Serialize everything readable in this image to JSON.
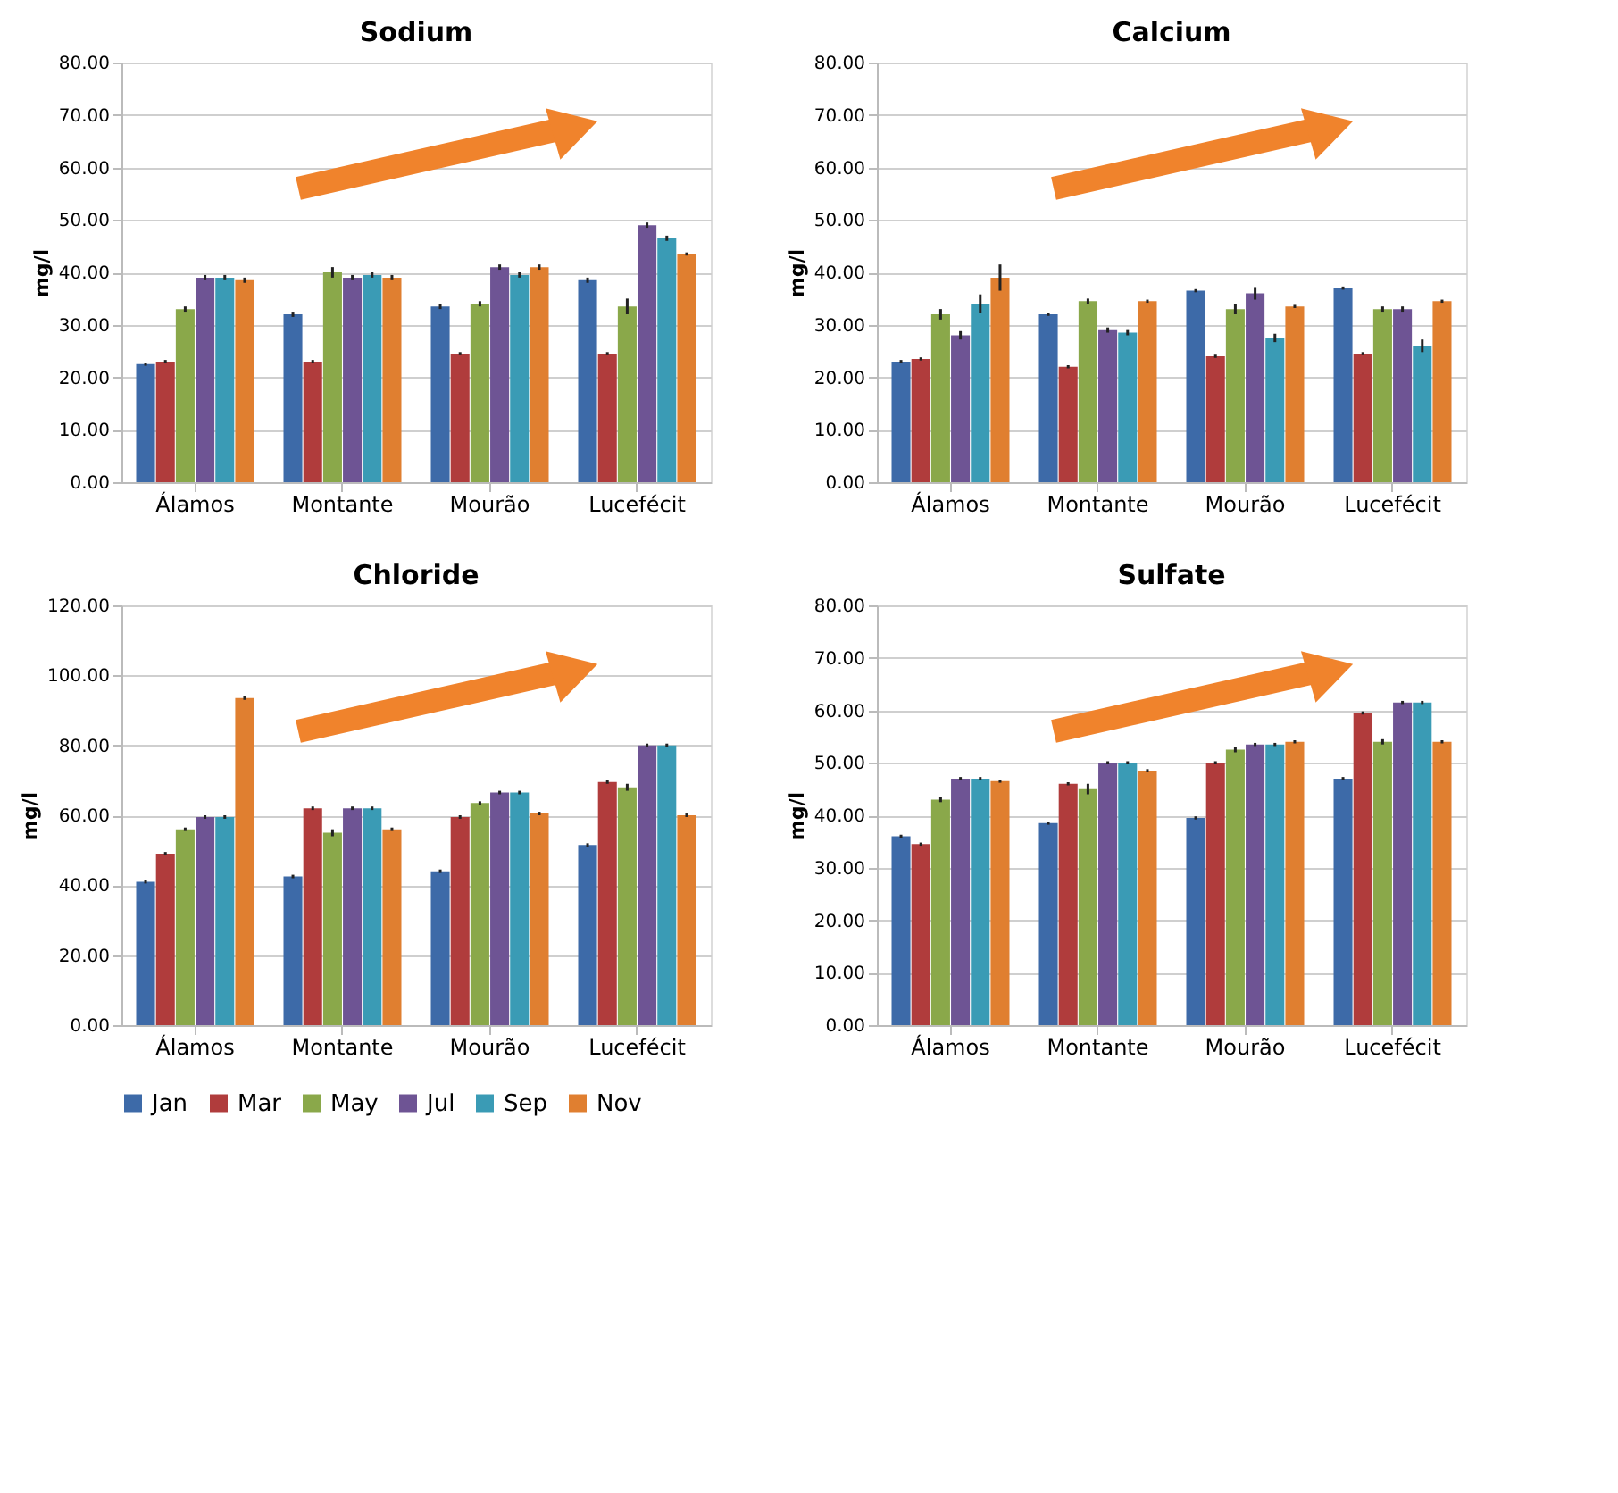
{
  "chart_data": [
    {
      "type": "bar",
      "title": "Sodium",
      "ylabel": "mg/l",
      "categories": [
        "Álamos",
        "Montante",
        "Mourão",
        "Lucefécit"
      ],
      "ylim": [
        0,
        80
      ],
      "yticks": [
        {
          "value": 0,
          "label": "0.00"
        },
        {
          "value": 10,
          "label": "10.00"
        },
        {
          "value": 20,
          "label": "20.00"
        },
        {
          "value": 30,
          "label": "30.00"
        },
        {
          "value": 40,
          "label": "40.00"
        },
        {
          "value": 50,
          "label": "50.00"
        },
        {
          "value": 60,
          "label": "60.00"
        },
        {
          "value": 70,
          "label": "70.00"
        },
        {
          "value": 80,
          "label": "80.00"
        }
      ],
      "grid": "y",
      "legend": "bottom",
      "series": [
        {
          "name": "Jan",
          "color": "#3d6aa8",
          "values": [
            22.5,
            32,
            33.5,
            38.5
          ],
          "errors": [
            0.3,
            0.5,
            0.5,
            0.5
          ]
        },
        {
          "name": "Mar",
          "color": "#b03c3c",
          "values": [
            23,
            23,
            24.5,
            24.5
          ],
          "errors": [
            0.3,
            0.3,
            0.3,
            0.3
          ]
        },
        {
          "name": "May",
          "color": "#8aa84a",
          "values": [
            33,
            40,
            34,
            33.5
          ],
          "errors": [
            0.5,
            1,
            0.5,
            1.5
          ]
        },
        {
          "name": "Jul",
          "color": "#6e5494",
          "values": [
            39,
            39,
            41,
            49
          ],
          "errors": [
            0.5,
            0.5,
            0.5,
            0.5
          ]
        },
        {
          "name": "Sep",
          "color": "#3a9bb5",
          "values": [
            39,
            39.5,
            39.5,
            46.5
          ],
          "errors": [
            0.5,
            0.5,
            0.5,
            0.5
          ]
        },
        {
          "name": "Nov",
          "color": "#e07f30",
          "values": [
            38.5,
            39,
            41,
            43.5
          ],
          "errors": [
            0.5,
            0.5,
            0.5,
            0.3
          ]
        }
      ]
    },
    {
      "type": "bar",
      "title": "Calcium",
      "ylabel": "mg/l",
      "categories": [
        "Álamos",
        "Montante",
        "Mourão",
        "Lucefécit"
      ],
      "ylim": [
        0,
        80
      ],
      "yticks": [
        {
          "value": 0,
          "label": "0.00"
        },
        {
          "value": 10,
          "label": "10.00"
        },
        {
          "value": 20,
          "label": "20.00"
        },
        {
          "value": 30,
          "label": "30.00"
        },
        {
          "value": 40,
          "label": "40.00"
        },
        {
          "value": 50,
          "label": "50.00"
        },
        {
          "value": 60,
          "label": "60.00"
        },
        {
          "value": 70,
          "label": "70.00"
        },
        {
          "value": 80,
          "label": "80.00"
        }
      ],
      "grid": "y",
      "legend": "bottom",
      "series": [
        {
          "name": "Jan",
          "color": "#3d6aa8",
          "values": [
            23,
            32,
            36.5,
            37
          ],
          "errors": [
            0.3,
            0.3,
            0.3,
            0.3
          ]
        },
        {
          "name": "Mar",
          "color": "#b03c3c",
          "values": [
            23.5,
            22,
            24,
            24.5
          ],
          "errors": [
            0.3,
            0.3,
            0.3,
            0.3
          ]
        },
        {
          "name": "May",
          "color": "#8aa84a",
          "values": [
            32,
            34.5,
            33,
            33
          ],
          "errors": [
            1,
            0.5,
            1,
            0.5
          ]
        },
        {
          "name": "Jul",
          "color": "#6e5494",
          "values": [
            28,
            29,
            36,
            33
          ],
          "errors": [
            0.8,
            0.5,
            1.2,
            0.5
          ]
        },
        {
          "name": "Sep",
          "color": "#3a9bb5",
          "values": [
            34,
            28.5,
            27.5,
            26
          ],
          "errors": [
            1.8,
            0.5,
            0.8,
            1.2
          ]
        },
        {
          "name": "Nov",
          "color": "#e07f30",
          "values": [
            39,
            34.5,
            33.5,
            34.5
          ],
          "errors": [
            2.5,
            0.3,
            0.3,
            0.3
          ]
        }
      ]
    },
    {
      "type": "bar",
      "title": "Chloride",
      "ylabel": "mg/l",
      "categories": [
        "Álamos",
        "Montante",
        "Mourão",
        "Lucefécit"
      ],
      "ylim": [
        0,
        120
      ],
      "yticks": [
        {
          "value": 0,
          "label": "0.00"
        },
        {
          "value": 20,
          "label": "20.00"
        },
        {
          "value": 40,
          "label": "40.00"
        },
        {
          "value": 60,
          "label": "60.00"
        },
        {
          "value": 80,
          "label": "80.00"
        },
        {
          "value": 100,
          "label": "100.00"
        },
        {
          "value": 120,
          "label": "120.00"
        }
      ],
      "grid": "y",
      "legend": "bottom",
      "series": [
        {
          "name": "Jan",
          "color": "#3d6aa8",
          "values": [
            41,
            42.5,
            44,
            51.5
          ],
          "errors": [
            0.5,
            0.5,
            0.5,
            0.5
          ]
        },
        {
          "name": "Mar",
          "color": "#b03c3c",
          "values": [
            49,
            62,
            59.5,
            69.5
          ],
          "errors": [
            0.5,
            0.5,
            0.5,
            0.5
          ]
        },
        {
          "name": "May",
          "color": "#8aa84a",
          "values": [
            56,
            55,
            63.5,
            68
          ],
          "errors": [
            0.5,
            1,
            0.5,
            1
          ]
        },
        {
          "name": "Jul",
          "color": "#6e5494",
          "values": [
            59.5,
            62,
            66.5,
            80
          ],
          "errors": [
            0.5,
            0.5,
            0.5,
            0.5
          ]
        },
        {
          "name": "Sep",
          "color": "#3a9bb5",
          "values": [
            59.5,
            62,
            66.5,
            80
          ],
          "errors": [
            0.5,
            0.5,
            0.5,
            0.5
          ]
        },
        {
          "name": "Nov",
          "color": "#e07f30",
          "values": [
            93.5,
            56,
            60.5,
            60
          ],
          "errors": [
            0.5,
            0.5,
            0.5,
            0.5
          ]
        }
      ]
    },
    {
      "type": "bar",
      "title": "Sulfate",
      "ylabel": "mg/l",
      "categories": [
        "Álamos",
        "Montante",
        "Mourão",
        "Lucefécit"
      ],
      "ylim": [
        0,
        80
      ],
      "yticks": [
        {
          "value": 0,
          "label": "0.00"
        },
        {
          "value": 10,
          "label": "10.00"
        },
        {
          "value": 20,
          "label": "20.00"
        },
        {
          "value": 30,
          "label": "30.00"
        },
        {
          "value": 40,
          "label": "40.00"
        },
        {
          "value": 50,
          "label": "50.00"
        },
        {
          "value": 60,
          "label": "60.00"
        },
        {
          "value": 70,
          "label": "70.00"
        },
        {
          "value": 80,
          "label": "80.00"
        }
      ],
      "grid": "y",
      "legend": "bottom",
      "series": [
        {
          "name": "Jan",
          "color": "#3d6aa8",
          "values": [
            36,
            38.5,
            39.5,
            47
          ],
          "errors": [
            0.3,
            0.3,
            0.3,
            0.3
          ]
        },
        {
          "name": "Mar",
          "color": "#b03c3c",
          "values": [
            34.5,
            46,
            50,
            59.5
          ],
          "errors": [
            0.3,
            0.3,
            0.3,
            0.3
          ]
        },
        {
          "name": "May",
          "color": "#8aa84a",
          "values": [
            43,
            45,
            52.5,
            54
          ],
          "errors": [
            0.5,
            1,
            0.5,
            0.5
          ]
        },
        {
          "name": "Jul",
          "color": "#6e5494",
          "values": [
            47,
            50,
            53.5,
            61.5
          ],
          "errors": [
            0.3,
            0.3,
            0.3,
            0.3
          ]
        },
        {
          "name": "Sep",
          "color": "#3a9bb5",
          "values": [
            47,
            50,
            53.5,
            61.5
          ],
          "errors": [
            0.3,
            0.3,
            0.3,
            0.3
          ]
        },
        {
          "name": "Nov",
          "color": "#e07f30",
          "values": [
            46.5,
            48.5,
            54,
            54
          ],
          "errors": [
            0.3,
            0.3,
            0.3,
            0.3
          ]
        }
      ]
    }
  ]
}
